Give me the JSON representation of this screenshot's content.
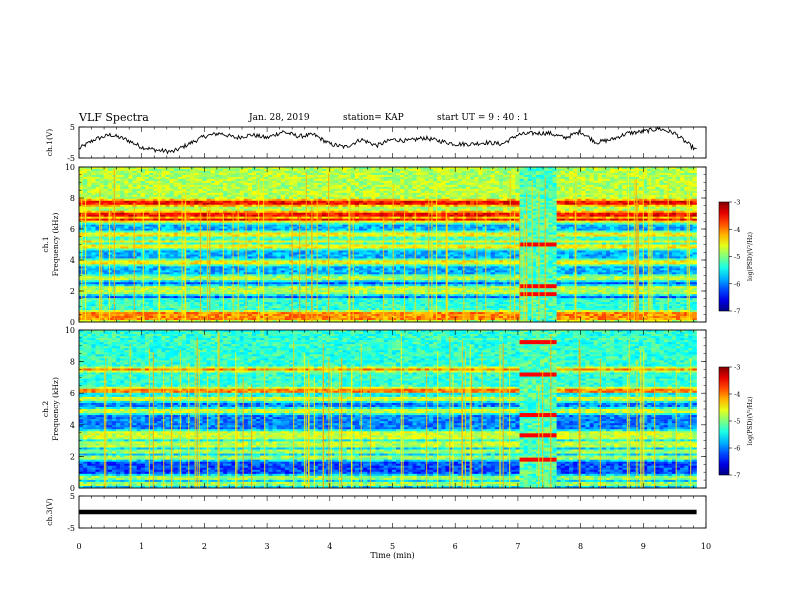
{
  "header": {
    "title": "VLF Spectra",
    "date": "Jan. 28, 2019",
    "station": "station= KAP",
    "start": "start  UT =  9 : 40 : 1"
  },
  "chart_data": [
    {
      "type": "line",
      "panel": "ch1-waveform",
      "ylabel": "ch.1(V)",
      "ylim": [
        -5,
        5
      ],
      "ytick_labels": [
        "5",
        "-5"
      ],
      "x": [
        0,
        0.25,
        0.5,
        0.75,
        1.0,
        1.25,
        1.5,
        1.75,
        2.0,
        2.25,
        2.5,
        2.75,
        3.0,
        3.25,
        3.5,
        3.75,
        4.0,
        4.25,
        4.5,
        4.75,
        5.0,
        5.25,
        5.5,
        5.75,
        6.0,
        6.25,
        6.5,
        6.75,
        7.0,
        7.25,
        7.5,
        7.75,
        8.0,
        8.25,
        8.5,
        8.75,
        9.0,
        9.25,
        9.5,
        9.75,
        9.85
      ],
      "y": [
        -2.0,
        1.0,
        2.5,
        1.0,
        -1.5,
        -2.5,
        -3.0,
        -0.5,
        2.0,
        3.0,
        1.5,
        2.5,
        1.5,
        3.5,
        2.0,
        2.5,
        -0.5,
        -1.5,
        1.0,
        -1.0,
        1.0,
        0.5,
        1.5,
        0.5,
        -0.5,
        -0.5,
        0.0,
        -0.5,
        2.5,
        3.0,
        3.0,
        1.5,
        3.5,
        0.0,
        1.0,
        3.0,
        3.5,
        4.5,
        3.0,
        -1.0,
        -2.5
      ]
    },
    {
      "type": "heatmap",
      "panel": "ch1-spectrogram",
      "ylabel": "ch.1\nFrequency (kHz)",
      "ylim": [
        0,
        10
      ],
      "ytick_labels": [
        "0",
        "2",
        "4",
        "6",
        "8",
        "10"
      ],
      "colorbar": {
        "label": "log(PSD)(V²/Hz)",
        "range": [
          -7,
          -3
        ],
        "tick_labels": [
          "-3",
          "-4",
          "-5",
          "-6",
          "-7"
        ]
      },
      "line_bands_khz": [
        0.3,
        0.5,
        1.9,
        2.2,
        2.8,
        3.9,
        4.9,
        5.2,
        5.6,
        6.5,
        6.9,
        7.7
      ],
      "event_window_min": [
        7.0,
        7.6
      ],
      "event_bands_khz": [
        1.8,
        2.3,
        5.0
      ]
    },
    {
      "type": "heatmap",
      "panel": "ch2-spectrogram",
      "ylabel": "ch.2\nFrequency (kHz)",
      "ylim": [
        0,
        10
      ],
      "ytick_labels": [
        "0",
        "2",
        "4",
        "6",
        "8",
        "10"
      ],
      "colorbar": {
        "label": "log(PSD)(V²/Hz)",
        "range": [
          -7,
          -3
        ],
        "tick_labels": [
          "-3",
          "-4",
          "-5",
          "-6",
          "-7"
        ]
      },
      "line_bands_khz": [
        0.3,
        0.6,
        1.9,
        2.3,
        3.2,
        3.5,
        4.9,
        5.6,
        6.2,
        7.5
      ],
      "event_window_min": [
        7.0,
        7.6
      ],
      "event_bands_khz": [
        1.8,
        3.3,
        4.6,
        7.2,
        9.2
      ]
    },
    {
      "type": "line",
      "panel": "ch3-waveform",
      "ylabel": "ch.3(V)",
      "ylim": [
        -5,
        5
      ],
      "ytick_labels": [
        "5",
        "-5"
      ],
      "x": [
        0,
        9.85
      ],
      "y": [
        0,
        0
      ]
    }
  ],
  "xaxis": {
    "xlabel": "Time (min)",
    "xlim": [
      0,
      10
    ],
    "tick_labels": [
      "0",
      "1",
      "2",
      "3",
      "4",
      "5",
      "6",
      "7",
      "8",
      "9",
      "10"
    ]
  }
}
